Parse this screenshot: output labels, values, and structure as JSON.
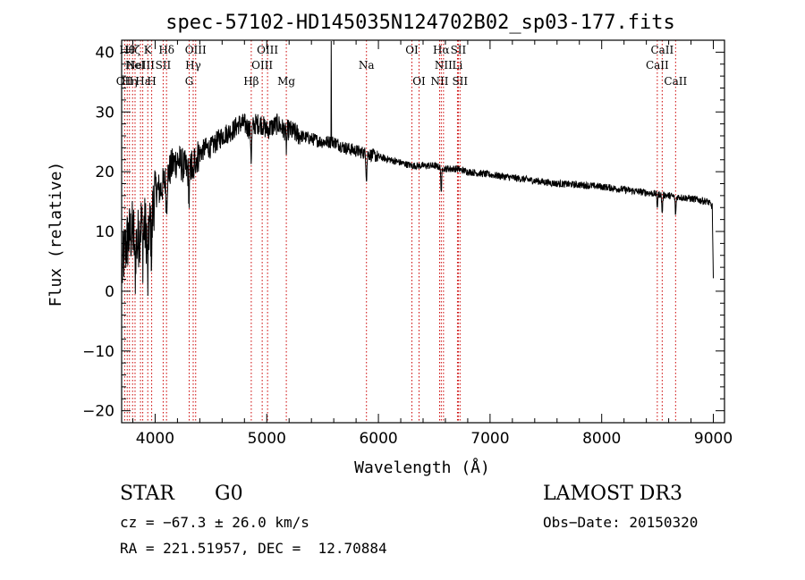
{
  "chart_data": {
    "type": "line",
    "title": "spec-57102-HD145035N124702B02_sp03-177.fits",
    "xlabel": "Wavelength (Å)",
    "ylabel": "Flux (relative)",
    "xlim": [
      3700,
      9100
    ],
    "ylim": [
      -22,
      42
    ],
    "xticks": [
      4000,
      5000,
      6000,
      7000,
      8000,
      9000
    ],
    "yticks": [
      -20,
      -10,
      0,
      10,
      20,
      30,
      40
    ],
    "spectrum_anchors": {
      "x": [
        3700,
        3720,
        3760,
        3800,
        3840,
        3880,
        3920,
        3960,
        4000,
        4050,
        4100,
        4150,
        4200,
        4250,
        4300,
        4350,
        4400,
        4450,
        4500,
        4550,
        4600,
        4650,
        4700,
        4750,
        4800,
        4850,
        4900,
        4950,
        5000,
        5050,
        5100,
        5150,
        5200,
        5300,
        5400,
        5500,
        5600,
        5700,
        5800,
        5900,
        6000,
        6100,
        6200,
        6300,
        6400,
        6500,
        6600,
        6700,
        6800,
        7000,
        7200,
        7400,
        7600,
        7800,
        8000,
        8200,
        8400,
        8600,
        8800,
        8950,
        9000
      ],
      "y": [
        2,
        6,
        9,
        10,
        8,
        12,
        10,
        11,
        17,
        17,
        19,
        21,
        22,
        21,
        20,
        22,
        23,
        24,
        24,
        25,
        26,
        26.5,
        27,
        28,
        28,
        27,
        28,
        28,
        27,
        27.5,
        28,
        27,
        27,
        26,
        25.5,
        25,
        25,
        24,
        23.5,
        23,
        22.5,
        22,
        21.5,
        21,
        21,
        21,
        20.5,
        20.5,
        20,
        19.5,
        19,
        18.5,
        18,
        17.8,
        17.5,
        17,
        16.5,
        16,
        15.5,
        15,
        14
      ]
    },
    "absorption_features": [
      {
        "x": 3820,
        "depth": 6
      },
      {
        "x": 3889,
        "depth": 5
      },
      {
        "x": 3934,
        "depth": 9
      },
      {
        "x": 3969,
        "depth": 6
      },
      {
        "x": 4102,
        "depth": 5
      },
      {
        "x": 4305,
        "depth": 5
      },
      {
        "x": 4341,
        "depth": 4
      },
      {
        "x": 4861,
        "depth": 5
      },
      {
        "x": 5175,
        "depth": 3
      },
      {
        "x": 5893,
        "depth": 4
      },
      {
        "x": 6563,
        "depth": 4
      },
      {
        "x": 8498,
        "depth": 2
      },
      {
        "x": 8542,
        "depth": 3
      },
      {
        "x": 8662,
        "depth": 3
      }
    ],
    "emission_spike": {
      "x": 5577,
      "peak": 45
    },
    "line_markers": [
      {
        "x": 3727,
        "label": "OII",
        "row": 3
      },
      {
        "x": 3750,
        "label": "Hθ",
        "row": 1
      },
      {
        "x": 3770,
        "label": "Hη",
        "row": 3
      },
      {
        "x": 3798,
        "label": "Hζ",
        "row": 1
      },
      {
        "x": 3820,
        "label": "HeI",
        "row": 2
      },
      {
        "x": 3869,
        "label": "NeIII",
        "row": 2
      },
      {
        "x": 3889,
        "label": "Hε",
        "row": 3
      },
      {
        "x": 3934,
        "label": "K",
        "row": 1
      },
      {
        "x": 3969,
        "label": "H",
        "row": 3
      },
      {
        "x": 4072,
        "label": "SII",
        "row": 2
      },
      {
        "x": 4102,
        "label": "Hδ",
        "row": 1
      },
      {
        "x": 4305,
        "label": "G",
        "row": 3
      },
      {
        "x": 4341,
        "label": "Hγ",
        "row": 2
      },
      {
        "x": 4363,
        "label": "OIII",
        "row": 1
      },
      {
        "x": 4861,
        "label": "Hβ",
        "row": 3
      },
      {
        "x": 4959,
        "label": "OIII",
        "row": 2
      },
      {
        "x": 5007,
        "label": "OIII",
        "row": 1
      },
      {
        "x": 5175,
        "label": "Mg",
        "row": 3
      },
      {
        "x": 5893,
        "label": "Na",
        "row": 2
      },
      {
        "x": 6300,
        "label": "OI",
        "row": 1
      },
      {
        "x": 6364,
        "label": "OI",
        "row": 3
      },
      {
        "x": 6548,
        "label": "NII",
        "row": 3
      },
      {
        "x": 6563,
        "label": "Hα",
        "row": 1
      },
      {
        "x": 6583,
        "label": "NII",
        "row": 2
      },
      {
        "x": 6708,
        "label": "Li",
        "row": 2
      },
      {
        "x": 6716,
        "label": "SII",
        "row": 1
      },
      {
        "x": 6731,
        "label": "SII",
        "row": 3
      },
      {
        "x": 8498,
        "label": "CaII",
        "row": 2
      },
      {
        "x": 8542,
        "label": "CaII",
        "row": 1
      },
      {
        "x": 8662,
        "label": "CaII",
        "row": 3
      }
    ],
    "grid": false,
    "legend": "none"
  },
  "info": {
    "class_label": "STAR",
    "subclass": "G0",
    "cz": "cz = −67.3 ± 26.0 km/s",
    "coords": "RA = 221.51957, DEC =  12.70884",
    "survey": "LAMOST DR3",
    "obs_date": "Obs−Date: 20150320"
  },
  "colors": {
    "axis": "#000000",
    "spectrum": "#000000",
    "marker": "#cc0000"
  }
}
